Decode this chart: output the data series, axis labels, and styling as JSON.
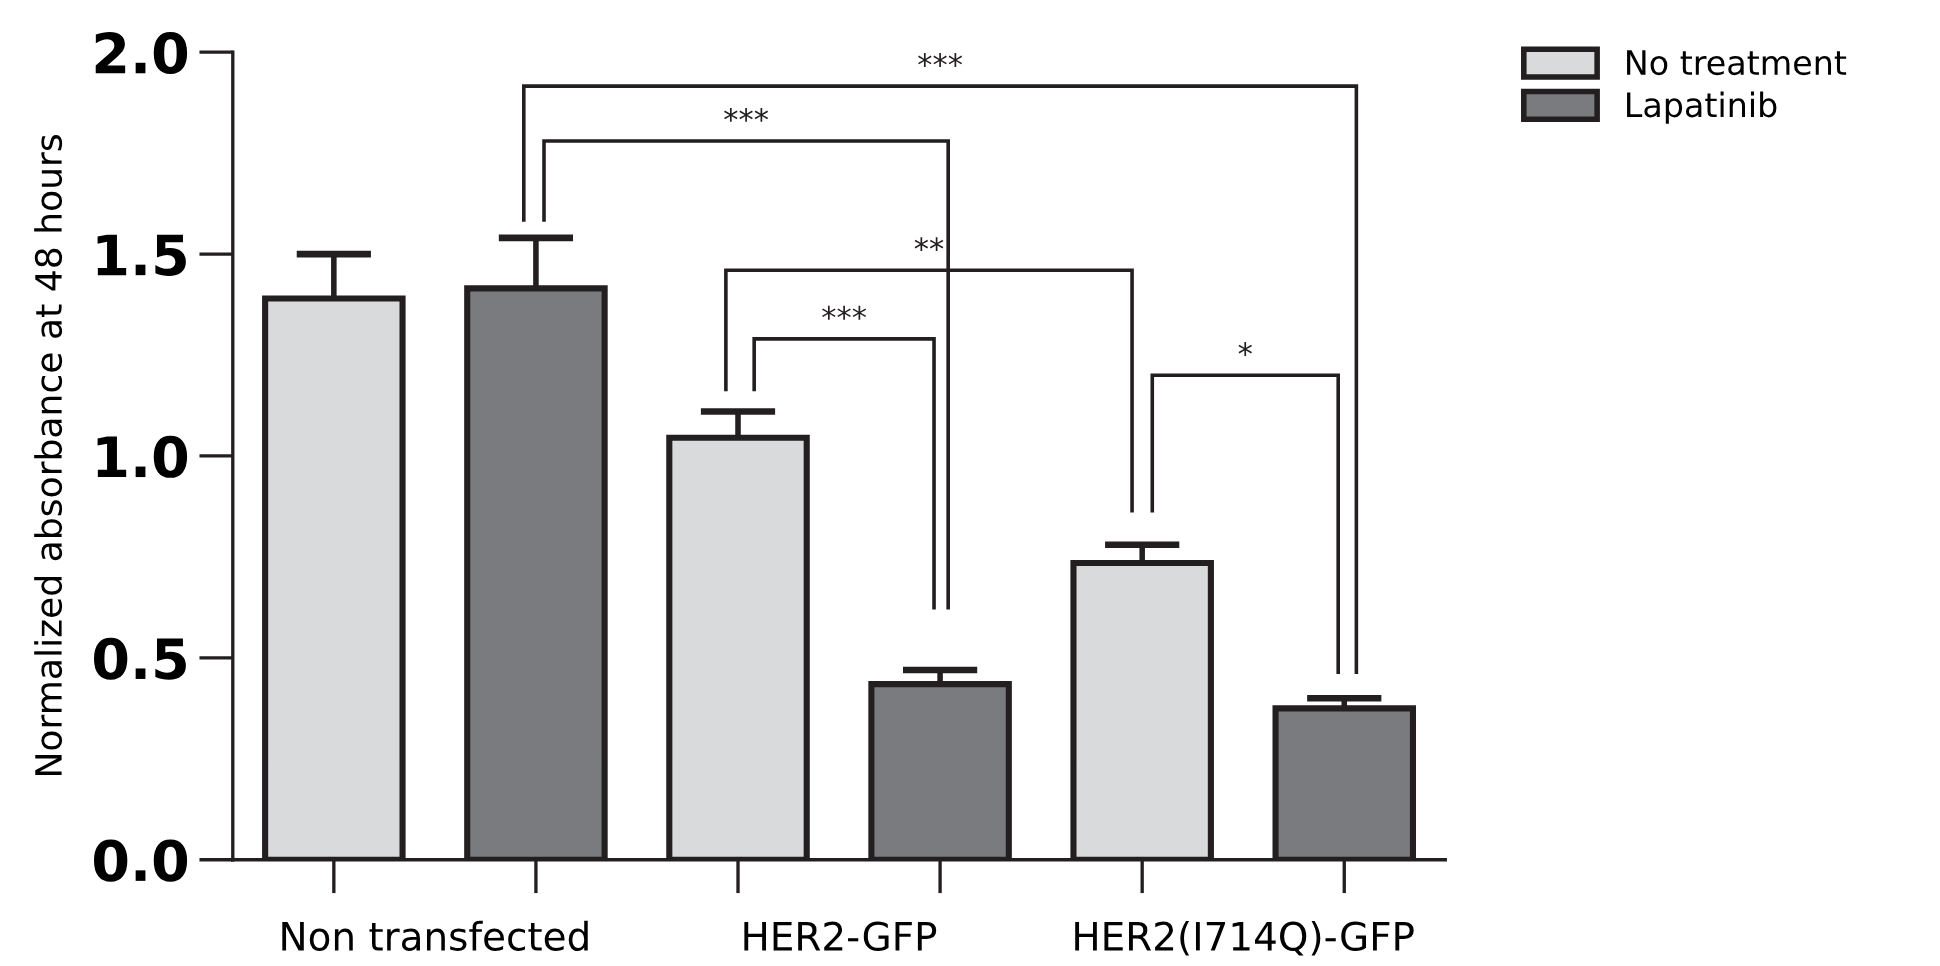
{
  "chart_data": {
    "type": "bar",
    "ylabel": "Normalized absorbance at 48 hours",
    "categories": [
      "Non transfected",
      "HER2-GFP",
      "HER2(I714Q)-GFP"
    ],
    "series": [
      {
        "name": "No treatment",
        "color": "#d9dadc",
        "values": [
          1.39,
          1.045,
          0.735
        ],
        "errors": [
          [
            1.39,
            1.5
          ],
          [
            1.045,
            1.11
          ],
          [
            0.735,
            0.78
          ]
        ]
      },
      {
        "name": "Lapatinib",
        "color": "#7a7b7f",
        "values": [
          1.415,
          0.435,
          0.375
        ],
        "errors": [
          [
            1.415,
            1.54
          ],
          [
            0.435,
            0.47
          ],
          [
            0.375,
            0.4
          ]
        ]
      }
    ],
    "ylim": [
      0,
      2.0
    ],
    "yticks": [
      {
        "value": 0,
        "label": "0.0"
      },
      {
        "value": 0.5,
        "label": "0.5"
      },
      {
        "value": 1.0,
        "label": "1.0"
      },
      {
        "value": 1.5,
        "label": "1.5"
      },
      {
        "value": 2.0,
        "label": "2.0"
      }
    ],
    "grid": false,
    "legend": "top right",
    "annotations": [
      "***",
      "***",
      "**",
      "***",
      "*"
    ]
  }
}
